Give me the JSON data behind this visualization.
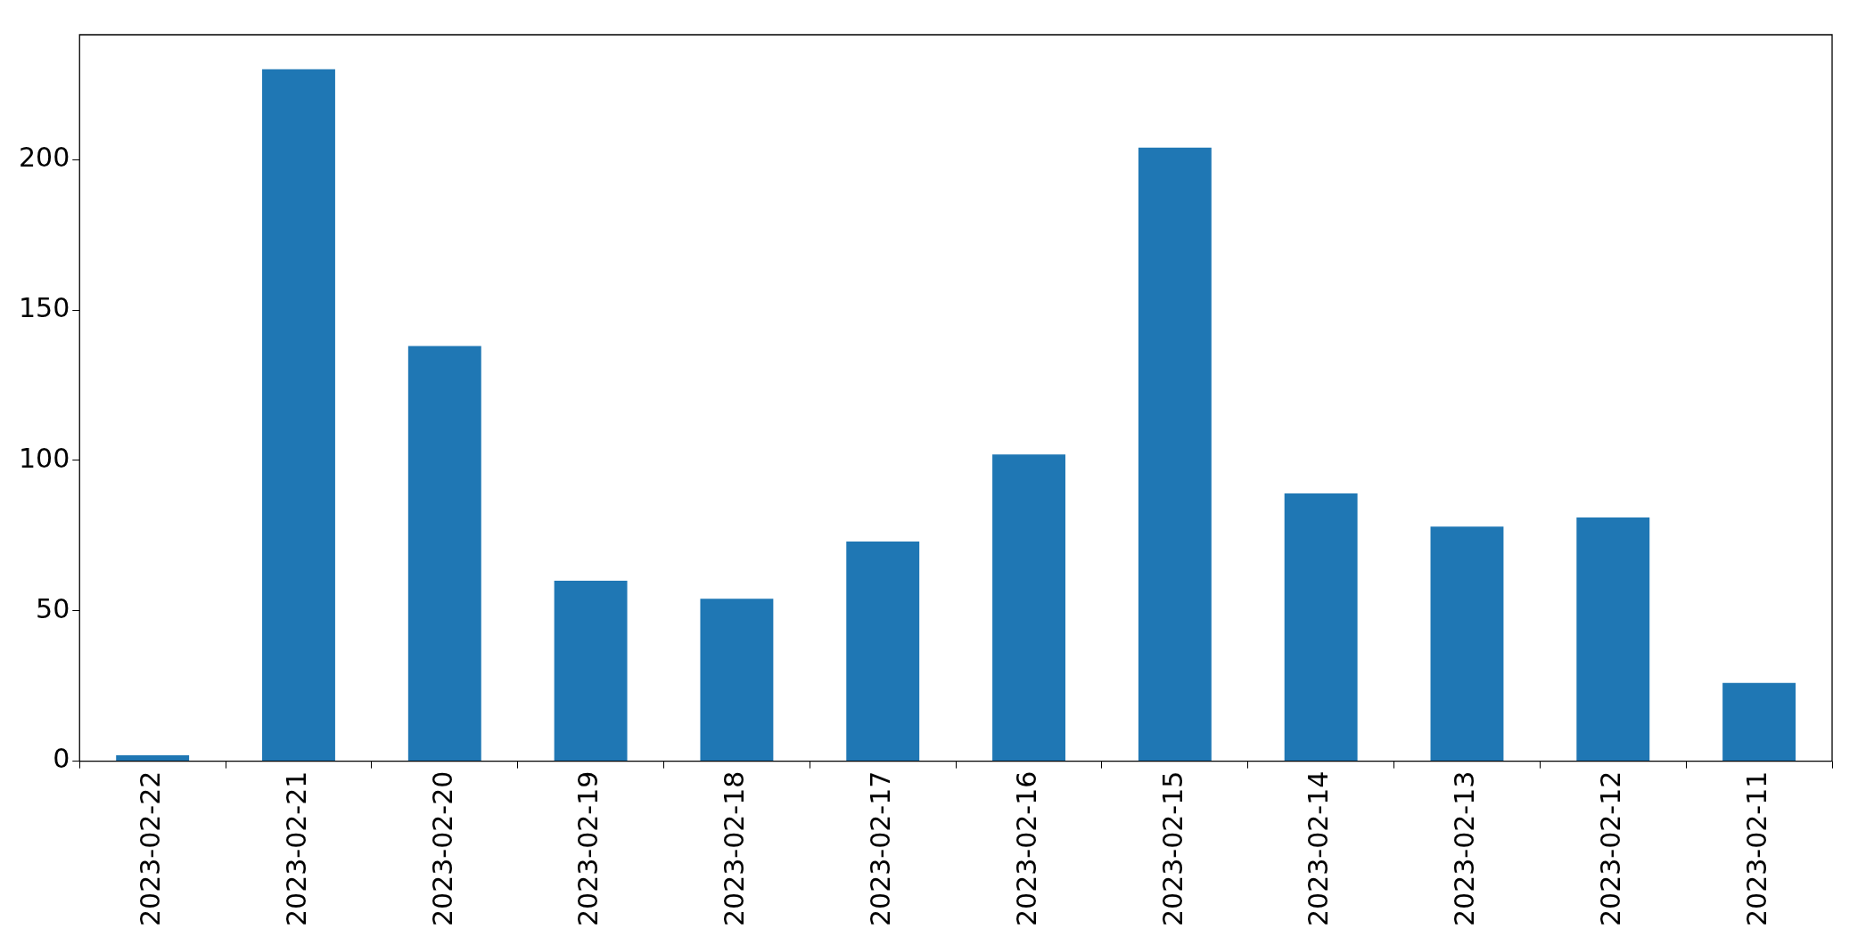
{
  "chart_data": {
    "type": "bar",
    "categories": [
      "2023-02-22",
      "2023-02-21",
      "2023-02-20",
      "2023-02-19",
      "2023-02-18",
      "2023-02-17",
      "2023-02-16",
      "2023-02-15",
      "2023-02-14",
      "2023-02-13",
      "2023-02-12",
      "2023-02-11"
    ],
    "values": [
      2,
      230,
      138,
      60,
      54,
      73,
      102,
      204,
      89,
      78,
      81,
      26
    ],
    "color": "#1f77b4",
    "ylim": [
      0,
      241.5
    ],
    "yticks": [
      0,
      50,
      100,
      150,
      200
    ],
    "grid": false,
    "legend": false
  }
}
